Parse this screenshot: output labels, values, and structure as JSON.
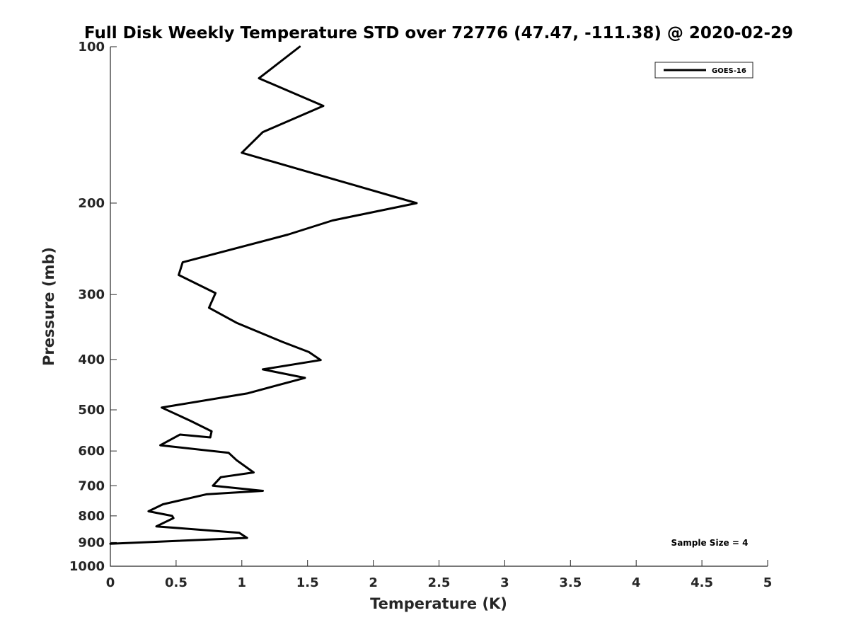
{
  "chart_data": {
    "type": "line",
    "title": "Full Disk Weekly Temperature STD over 72776 (47.47, -111.38) @ 2020-02-29",
    "xlabel": "Temperature (K)",
    "ylabel": "Pressure (mb)",
    "xlim": [
      0,
      5
    ],
    "ylim": [
      100,
      1000
    ],
    "y_scale": "log",
    "y_reversed": true,
    "x_ticks": [
      "0",
      "0.5",
      "1",
      "1.5",
      "2",
      "2.5",
      "3",
      "3.5",
      "4",
      "4.5",
      "5"
    ],
    "y_ticks": [
      "100",
      "200",
      "300",
      "400",
      "500",
      "600",
      "700",
      "800",
      "900",
      "1000"
    ],
    "grid": false,
    "legend_position": "top-right",
    "annotation": "Sample Size = 4",
    "series": [
      {
        "name": "GOES-16",
        "color": "#000000",
        "x": [
          1.44,
          1.13,
          1.62,
          1.16,
          1.0,
          2.33,
          1.69,
          1.35,
          0.55,
          0.52,
          0.8,
          0.75,
          0.96,
          1.31,
          1.51,
          1.6,
          1.16,
          1.48,
          1.04,
          0.39,
          0.61,
          0.77,
          0.76,
          0.53,
          0.38,
          0.9,
          0.96,
          1.09,
          0.84,
          0.78,
          1.16,
          0.73,
          0.4,
          0.29,
          0.47,
          0.48,
          0.35,
          0.98,
          1.04,
          0.0
        ],
        "y": [
          100,
          115,
          130,
          146,
          160,
          200,
          216,
          230,
          260,
          275,
          298,
          318,
          340,
          370,
          387,
          401,
          418,
          434,
          465,
          495,
          525,
          550,
          565,
          558,
          585,
          605,
          625,
          660,
          674,
          700,
          716,
          727,
          760,
          784,
          800,
          808,
          838,
          862,
          882,
          905
        ]
      }
    ]
  }
}
